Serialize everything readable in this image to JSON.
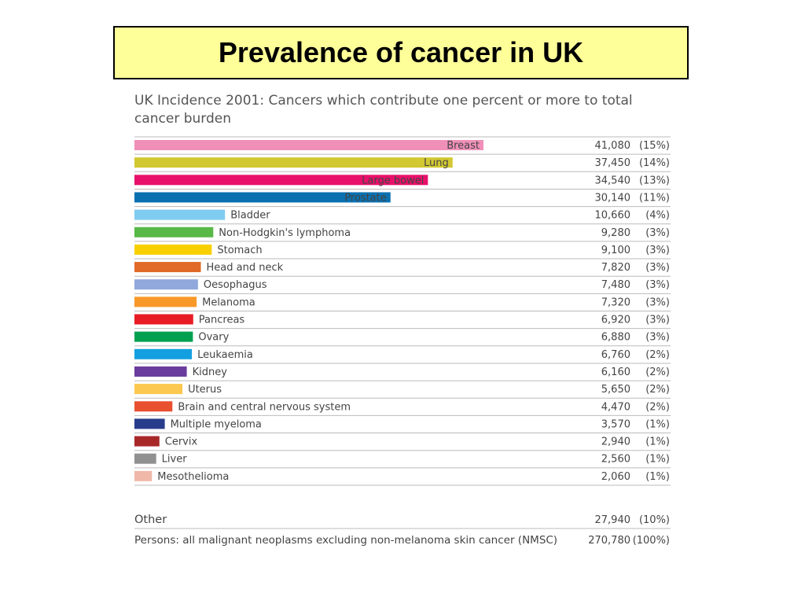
{
  "slide": {
    "title": "Prevalence of cancer in UK"
  },
  "chart_data": {
    "type": "bar",
    "orientation": "horizontal",
    "title": "UK Incidence 2001: Cancers which contribute one percent or more to total cancer burden",
    "grid": false,
    "categories": [
      "Breast",
      "Lung",
      "Large bowel",
      "Prostate",
      "Bladder",
      "Non-Hodgkin's lymphoma",
      "Stomach",
      "Head and neck",
      "Oesophagus",
      "Melanoma",
      "Pancreas",
      "Ovary",
      "Leukaemia",
      "Kidney",
      "Uterus",
      "Brain and central nervous system",
      "Multiple myeloma",
      "Cervix",
      "Liver",
      "Mesothelioma"
    ],
    "values": [
      41080,
      37450,
      34540,
      30140,
      10660,
      9280,
      9100,
      7820,
      7480,
      7320,
      6920,
      6880,
      6760,
      6160,
      5650,
      4470,
      3570,
      2940,
      2560,
      2060
    ],
    "value_labels": [
      "41,080",
      "37,450",
      "34,540",
      "30,140",
      "10,660",
      "9,280",
      "9,100",
      "7,820",
      "7,480",
      "7,320",
      "6,920",
      "6,880",
      "6,760",
      "6,160",
      "5,650",
      "4,470",
      "3,570",
      "2,940",
      "2,560",
      "2,060"
    ],
    "percent_labels": [
      "(15%)",
      "(14%)",
      "(13%)",
      "(11%)",
      "(4%)",
      "(3%)",
      "(3%)",
      "(3%)",
      "(3%)",
      "(3%)",
      "(3%)",
      "(3%)",
      "(2%)",
      "(2%)",
      "(2%)",
      "(2%)",
      "(1%)",
      "(1%)",
      "(1%)",
      "(1%)"
    ],
    "colors": [
      "#f090b8",
      "#d2c832",
      "#e8106a",
      "#0a70b0",
      "#80ccf0",
      "#58b848",
      "#f8d000",
      "#e06a28",
      "#90a8dc",
      "#f89828",
      "#e81c24",
      "#00a050",
      "#14a0e0",
      "#6a3c9c",
      "#fcc850",
      "#e85030",
      "#283c8c",
      "#a82828",
      "#909090",
      "#f0b8a8"
    ],
    "totals": [
      {
        "label": "Other",
        "value": 27940,
        "value_label": "27,940",
        "percent_label": "(10%)"
      },
      {
        "label": "Persons: all malignant neoplasms excluding non-melanoma skin cancer (NMSC)",
        "value": 270780,
        "value_label": "270,780",
        "percent_label": "(100%)"
      }
    ]
  }
}
